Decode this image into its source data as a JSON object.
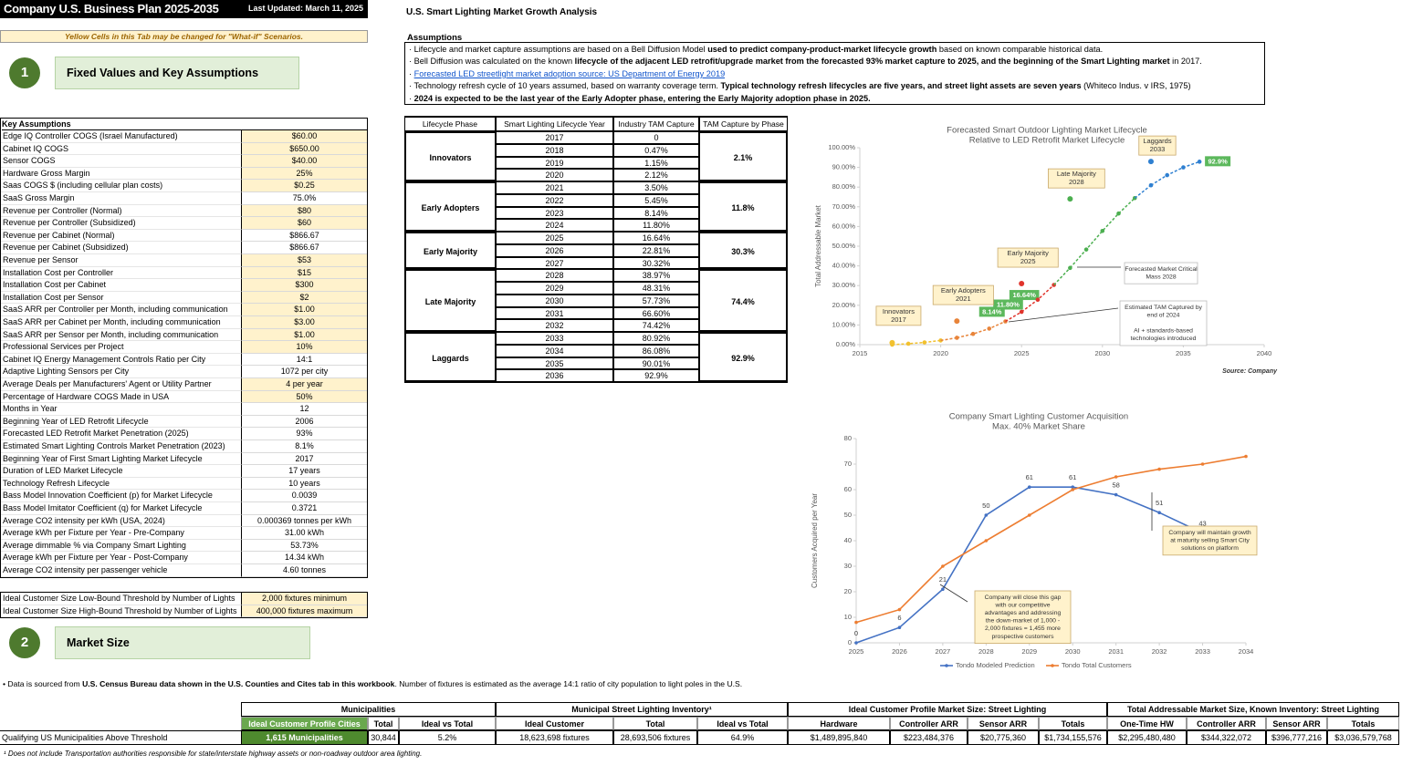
{
  "header": {
    "title": "Company U.S. Business Plan 2025-2035",
    "updated": "Last Updated: March 11, 2025",
    "note": "Yellow Cells in this Tab may be changed for \"What-if\" Scenarios."
  },
  "sections": [
    {
      "number": "1",
      "title": "Fixed Values and Key Assumptions"
    },
    {
      "number": "2",
      "title": "Market Size"
    }
  ],
  "key_assumptions": {
    "title": "Key Assumptions",
    "rows": [
      {
        "label": "Edge IQ Controller COGS (Israel Manufactured)",
        "value": "$60.00",
        "editable": true
      },
      {
        "label": "Cabinet IQ COGS",
        "value": "$650.00",
        "editable": true
      },
      {
        "label": "Sensor COGS",
        "value": "$40.00",
        "editable": true
      },
      {
        "label": "Hardware Gross Margin",
        "value": "25%",
        "editable": true
      },
      {
        "label": "Saas COGS $ (including cellular plan costs)",
        "value": "$0.25",
        "editable": true
      },
      {
        "label": "SaaS Gross Margin",
        "value": "75.0%",
        "editable": false
      },
      {
        "label": "Revenue per Controller (Normal)",
        "value": "$80",
        "editable": true
      },
      {
        "label": "Revenue per Controller (Subsidized)",
        "value": "$60",
        "editable": true
      },
      {
        "label": "Revenue per Cabinet (Normal)",
        "value": "$866.67",
        "editable": false
      },
      {
        "label": "Revenue per Cabinet (Subsidized)",
        "value": "$866.67",
        "editable": false
      },
      {
        "label": "Revenue per Sensor",
        "value": "$53",
        "editable": true
      },
      {
        "label": "Installation Cost per Controller",
        "value": "$15",
        "editable": true
      },
      {
        "label": "Installation Cost per Cabinet",
        "value": "$300",
        "editable": true
      },
      {
        "label": "Installation Cost per Sensor",
        "value": "$2",
        "editable": true
      },
      {
        "label": "SaaS ARR per Controller per Month, including communication",
        "value": "$1.00",
        "editable": true
      },
      {
        "label": "SaaS ARR per Cabinet per Month, including communication",
        "value": "$3.00",
        "editable": true
      },
      {
        "label": "SaaS ARR per Sensor per Month, including communication",
        "value": "$1.00",
        "editable": true
      },
      {
        "label": "Professional Services per Project",
        "value": "10%",
        "editable": true
      },
      {
        "label": "Cabinet IQ Energy Management Controls Ratio per City",
        "value": "14:1",
        "editable": false
      },
      {
        "label": "Adaptive Lighting Sensors per City",
        "value": "1072 per city",
        "editable": false
      },
      {
        "label": "Average Deals per Manufacturers' Agent or Utility Partner",
        "value": "4 per year",
        "editable": true
      },
      {
        "label": "Percentage of Hardware COGS Made in USA",
        "value": "50%",
        "editable": true
      },
      {
        "label": "Months in Year",
        "value": "12",
        "editable": false
      },
      {
        "label": "Beginning Year of LED Retrofit Lifecycle",
        "value": "2006",
        "editable": false
      },
      {
        "label": "Forecasted LED Retrofit Market Penetration (2025)",
        "value": "93%",
        "editable": false
      },
      {
        "label": "Estimated Smart Lighting Controls Market Penetration (2023)",
        "value": "8.1%",
        "editable": false
      },
      {
        "label": "Beginning Year of First Smart Lighting Market Lifecycle",
        "value": "2017",
        "editable": false
      },
      {
        "label": "Duration of LED Market Lifecycle",
        "value": "17 years",
        "editable": false
      },
      {
        "label": "Technology Refresh Lifecycle",
        "value": "10 years",
        "editable": false
      },
      {
        "label": "Bass Model Innovation Coefficient (p) for Market Lifecycle",
        "value": "0.0039",
        "editable": false
      },
      {
        "label": "Bass Model Imitator Coefficient (q) for Market Lifecycle",
        "value": "0.3721",
        "editable": false
      },
      {
        "label": "Average CO2 intensity per kWh (USA, 2024)",
        "value": "0.000369 tonnes per kWh",
        "editable": false
      },
      {
        "label": "Average kWh per Fixture per Year - Pre-Company",
        "value": "31.00 kWh",
        "editable": false
      },
      {
        "label": "Average dimmable % via Company Smart Lighting",
        "value": "53.73%",
        "editable": false
      },
      {
        "label": "Average kWh per Fixture per Year - Post-Company",
        "value": "14.34 kWh",
        "editable": false
      },
      {
        "label": "Average CO2 intensity per passenger vehicle",
        "value": "4.60 tonnes",
        "editable": false
      }
    ]
  },
  "thresholds": [
    {
      "label": "Ideal Customer Size Low-Bound Threshold by Number of Lights",
      "value": "2,000 fixtures minimum",
      "editable": true
    },
    {
      "label": "Ideal Customer Size High-Bound Threshold by Number of Lights",
      "value": "400,000 fixtures maximum",
      "editable": true
    }
  ],
  "analysis": {
    "title": "U.S. Smart Lighting Market Growth Analysis",
    "assumptions_title": "Assumptions",
    "bullets": [
      [
        {
          "text": "· Lifecycle and market capture assumptions are based on a Bell Diffusion Model ",
          "bold": false
        },
        {
          "text": "used to predict company-product-market lifecycle growth",
          "bold": true
        },
        {
          "text": " based on known comparable historical data.",
          "bold": false
        }
      ],
      [
        {
          "text": "· Bell Diffusion was calculated on the known ",
          "bold": false
        },
        {
          "text": "lifecycle of the adjacent LED retrofit/upgrade market from the forecasted 93% market capture to 2025, and the beginning of the Smart Lighting market",
          "bold": true
        },
        {
          "text": " in 2017.",
          "bold": false
        }
      ],
      [
        {
          "text": "· ",
          "bold": false
        },
        {
          "text": "Forecasted LED streetlight market adoption source: US Department of Energy 2019",
          "bold": false,
          "link": true
        }
      ],
      [
        {
          "text": "· Technology refresh cycle of 10 years assumed, based on warranty coverage term. ",
          "bold": false
        },
        {
          "text": "Typical technology refresh lifecycles are five years, and street light assets are seven years",
          "bold": true
        },
        {
          "text": " (Whiteco Indus. v IRS, 1975)",
          "bold": false
        }
      ],
      [
        {
          "text": "· ",
          "bold": false
        },
        {
          "text": "2024 is expected to be the last year of the Early Adopter phase, entering the Early Majority adoption phase in 2025.",
          "bold": true
        }
      ]
    ]
  },
  "lifecycle_table": {
    "headers": [
      "Lifecycle Phase",
      "Smart Lighting Lifecycle Year",
      "Industry TAM Capture",
      "TAM Capture by Phase"
    ],
    "phases": [
      {
        "name": "Innovators",
        "capture": "2.1%",
        "years": [
          2017,
          2018,
          2019,
          2020
        ],
        "tam": [
          "0",
          "0.47%",
          "1.15%",
          "2.12%"
        ]
      },
      {
        "name": "Early Adopters",
        "capture": "11.8%",
        "years": [
          2021,
          2022,
          2023,
          2024
        ],
        "tam": [
          "3.50%",
          "5.45%",
          "8.14%",
          "11.80%"
        ]
      },
      {
        "name": "Early Majority",
        "capture": "30.3%",
        "years": [
          2025,
          2026,
          2027
        ],
        "tam": [
          "16.64%",
          "22.81%",
          "30.32%"
        ]
      },
      {
        "name": "Late Majority",
        "capture": "74.4%",
        "years": [
          2028,
          2029,
          2030,
          2031,
          2032
        ],
        "tam": [
          "38.97%",
          "48.31%",
          "57.73%",
          "66.60%",
          "74.42%"
        ]
      },
      {
        "name": "Laggards",
        "capture": "92.9%",
        "years": [
          2033,
          2034,
          2035,
          2036
        ],
        "tam": [
          "80.92%",
          "86.08%",
          "90.01%",
          "92.9%"
        ]
      }
    ]
  },
  "data_note": [
    {
      "text": "• Data is sourced from ",
      "bold": false
    },
    {
      "text": "U.S. Census Bureau data shown in the U.S. Counties and Cites tab in this workbook",
      "bold": true
    },
    {
      "text": ". Number of fixtures is estimated as the average 14:1 ratio of city population to light poles in the U.S.",
      "bold": false
    }
  ],
  "market_size": {
    "groups": [
      {
        "title": "Municipalities",
        "columns": [
          "Ideal Customer Profile Cities",
          "Total",
          "Ideal vs Total"
        ]
      },
      {
        "title": "Municipal Street Lighting Inventory¹",
        "columns": [
          "Ideal Customer",
          "Total",
          "Ideal vs Total"
        ]
      },
      {
        "title": "Ideal Customer Profile Market Size: Street Lighting",
        "columns": [
          "Hardware",
          "Controller ARR",
          "Sensor ARR",
          "Totals"
        ]
      },
      {
        "title": "Total Addressable Market Size, Known Inventory: Street Lighting",
        "columns": [
          "One-Time HW",
          "Controller ARR",
          "Sensor ARR",
          "Totals"
        ]
      }
    ],
    "row_label": "Qualifying US Municipalities Above Threshold",
    "row": [
      "1,615 Municipalities",
      "30,844",
      "5.2%",
      "18,623,698 fixtures",
      "28,693,506 fixtures",
      "64.9%",
      "$1,489,895,840",
      "$223,484,376",
      "$20,775,360",
      "$1,734,155,576",
      "$2,295,480,480",
      "$344,322,072",
      "$396,777,216",
      "$3,036,579,768"
    ]
  },
  "footnote": "¹ Does not include Transportation authorities responsible for state/interstate highway assets or non-roadway outdoor area lighting.",
  "chart_data": [
    {
      "type": "line",
      "title": "Forecasted Smart Outdoor Lighting Market Lifecycle",
      "subtitle": "Relative to LED Retrofit Market Lifecycle",
      "ylabel": "Total Addressable Market",
      "source": "Source: Company",
      "xlim": [
        2015,
        2040
      ],
      "xticks": [
        2015,
        2020,
        2025,
        2030,
        2035,
        2040
      ],
      "ylim": [
        0,
        100
      ],
      "yticks": [
        {
          "value": 0,
          "label": "0.00%"
        },
        {
          "value": 10,
          "label": "10.00%"
        },
        {
          "value": 20,
          "label": "20.00%"
        },
        {
          "value": 30,
          "label": "30.00%"
        },
        {
          "value": 40,
          "label": "40.00%"
        },
        {
          "value": 50,
          "label": "50.00%"
        },
        {
          "value": 60,
          "label": "60.00%"
        },
        {
          "value": 70,
          "label": "70.00%"
        },
        {
          "value": 80,
          "label": "80.00%"
        },
        {
          "value": 90,
          "label": "90.00%"
        },
        {
          "value": 100,
          "label": "100.00%"
        }
      ],
      "grid": false,
      "series": [
        {
          "color": "#f2c12e",
          "x": [
            2017,
            2018,
            2019,
            2020
          ],
          "values": [
            0,
            0.47,
            1.15,
            2.12
          ]
        },
        {
          "color": "#e8843a",
          "x": [
            2021,
            2022,
            2023,
            2024
          ],
          "values": [
            3.5,
            5.45,
            8.14,
            11.8
          ],
          "value_labels": [
            null,
            null,
            "8.14%",
            "11.80%"
          ]
        },
        {
          "color": "#e0342c",
          "x": [
            2025,
            2026,
            2027
          ],
          "values": [
            16.64,
            22.81,
            30.32
          ],
          "value_labels": [
            "16.64%",
            null,
            null
          ]
        },
        {
          "color": "#4caf50",
          "x": [
            2028,
            2029,
            2030,
            2031,
            2032
          ],
          "values": [
            38.97,
            48.31,
            57.73,
            66.6,
            74.42
          ]
        },
        {
          "color": "#2f80d1",
          "x": [
            2033,
            2034,
            2035,
            2036
          ],
          "values": [
            80.92,
            86.08,
            90.01,
            92.9
          ],
          "value_labels": [
            null,
            null,
            null,
            "92.9%"
          ]
        }
      ],
      "annotations": [
        {
          "text": [
            "Innovators",
            "2017"
          ],
          "x": 2017,
          "y": 1,
          "color": "#f2c12e"
        },
        {
          "text": [
            "Early Adopters",
            "2021"
          ],
          "x": 2021,
          "y": 12,
          "color": "#e8843a"
        },
        {
          "text": [
            "Early Majority",
            "2025"
          ],
          "x": 2025,
          "y": 31,
          "color": "#e0342c"
        },
        {
          "text": [
            "Late Majority",
            "2028"
          ],
          "x": 2028,
          "y": 74,
          "color": "#4caf50"
        },
        {
          "text": [
            "Laggards",
            "2033"
          ],
          "x": 2033,
          "y": 93,
          "color": "#2f80d1"
        }
      ],
      "callouts": [
        {
          "paragraphs": [
            [
              "Forecasted Market Critical",
              "Mass 2028"
            ]
          ]
        },
        {
          "paragraphs": [
            [
              "Estimated TAM Captured by",
              "end of 2024"
            ],
            [
              "AI + standards-based",
              "technologies introduced"
            ]
          ]
        }
      ]
    },
    {
      "type": "line",
      "title": "Company Smart Lighting Customer Acquisition",
      "subtitle": "Max. 40% Market Share",
      "ylabel": "Customers Acquired per Year",
      "xlim": [
        2025,
        2034
      ],
      "xticks": [
        2025,
        2026,
        2027,
        2028,
        2029,
        2030,
        2031,
        2032,
        2033,
        2034
      ],
      "ylim": [
        0,
        80
      ],
      "yticks": [
        0,
        10,
        20,
        30,
        40,
        50,
        60,
        70,
        80
      ],
      "grid": false,
      "legend": "bottom",
      "series": [
        {
          "name": "Tondo Modeled Prediction",
          "color": "#4472c4",
          "data_labels": true,
          "x": [
            2025,
            2026,
            2027,
            2028,
            2029,
            2030,
            2031,
            2032,
            2033,
            2034
          ],
          "values": [
            0,
            6,
            21,
            50,
            61,
            61,
            58,
            51,
            43,
            null
          ]
        },
        {
          "name": "Tondo Total Customers",
          "color": "#ed7d31",
          "x": [
            2025,
            2026,
            2027,
            2028,
            2029,
            2030,
            2031,
            2032,
            2033,
            2034
          ],
          "values": [
            8,
            13,
            30,
            40,
            50,
            60,
            65,
            68,
            70,
            73
          ]
        }
      ],
      "callouts": [
        {
          "paragraphs": [
            [
              "Company will close this gap",
              "with our competitive",
              "advantages and addressing",
              "the down-market of 1,000 -",
              "2,000 fixtures = 1,455 more",
              "prospective customers"
            ]
          ]
        },
        {
          "paragraphs": [
            [
              "Company will maintain growth",
              "at maturity selling Smart City",
              "solutions on platform"
            ]
          ]
        }
      ]
    }
  ]
}
